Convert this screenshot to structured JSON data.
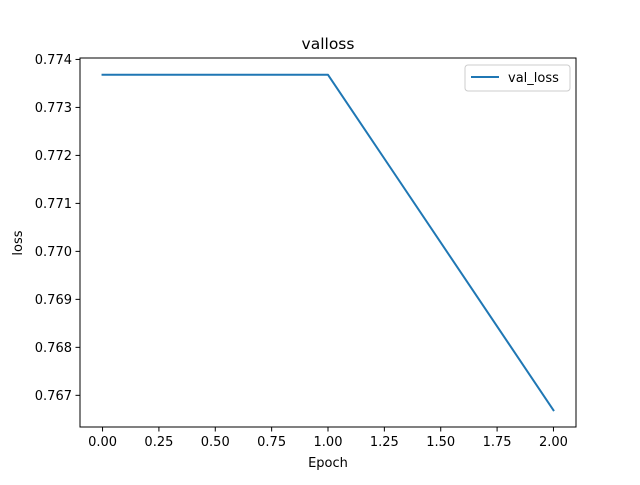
{
  "chart_data": {
    "type": "line",
    "title": "valloss",
    "xlabel": "Epoch",
    "ylabel": "loss",
    "x": [
      0,
      1,
      2
    ],
    "series": [
      {
        "name": "val_loss",
        "color": "#1f77b4",
        "values": [
          0.77368,
          0.77368,
          0.76669
        ]
      }
    ],
    "xlim": [
      -0.1,
      2.1
    ],
    "ylim": [
      0.76634,
      0.77403
    ],
    "xticks": [
      0,
      0.25,
      0.5,
      0.75,
      1,
      1.25,
      1.5,
      1.75,
      2
    ],
    "xtick_labels": [
      "0.00",
      "0.25",
      "0.50",
      "0.75",
      "1.00",
      "1.25",
      "1.50",
      "1.75",
      "2.00"
    ],
    "yticks": [
      0.767,
      0.768,
      0.769,
      0.77,
      0.771,
      0.772,
      0.773,
      0.774
    ],
    "ytick_labels": [
      "0.767",
      "0.768",
      "0.769",
      "0.770",
      "0.771",
      "0.772",
      "0.773",
      "0.774"
    ],
    "grid": false,
    "legend_position": "upper-right"
  }
}
